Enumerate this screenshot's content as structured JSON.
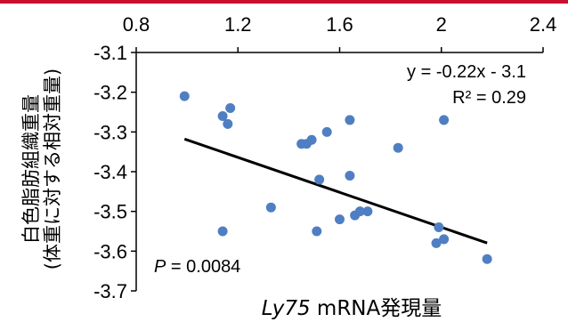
{
  "chart_data": {
    "type": "scatter",
    "x_axis": {
      "label_italic": "Ly75",
      "label_rest": " mRNA発現量",
      "range": [
        0.8,
        2.4
      ],
      "ticks": [
        "0.8",
        "1.2",
        "1.6",
        "2",
        "2.4"
      ],
      "position": "top"
    },
    "y_axis": {
      "label_line1": "白色脂肪組織重量",
      "label_line2": "(体重に対する相対重量)",
      "range": [
        -3.7,
        -3.1
      ],
      "ticks": [
        "-3.1",
        "-3.2",
        "-3.3",
        "-3.4",
        "-3.5",
        "-3.6",
        "-3.7"
      ]
    },
    "grid": false,
    "points": [
      {
        "x": 0.99,
        "y": -3.21
      },
      {
        "x": 1.14,
        "y": -3.26
      },
      {
        "x": 1.17,
        "y": -3.24
      },
      {
        "x": 1.16,
        "y": -3.28
      },
      {
        "x": 1.14,
        "y": -3.55
      },
      {
        "x": 1.33,
        "y": -3.49
      },
      {
        "x": 1.45,
        "y": -3.33
      },
      {
        "x": 1.47,
        "y": -3.33
      },
      {
        "x": 1.49,
        "y": -3.32
      },
      {
        "x": 1.55,
        "y": -3.3
      },
      {
        "x": 1.52,
        "y": -3.42
      },
      {
        "x": 1.51,
        "y": -3.55
      },
      {
        "x": 1.64,
        "y": -3.27
      },
      {
        "x": 1.64,
        "y": -3.41
      },
      {
        "x": 1.6,
        "y": -3.52
      },
      {
        "x": 1.66,
        "y": -3.51
      },
      {
        "x": 1.68,
        "y": -3.5
      },
      {
        "x": 1.71,
        "y": -3.5
      },
      {
        "x": 1.83,
        "y": -3.34
      },
      {
        "x": 1.99,
        "y": -3.54
      },
      {
        "x": 1.98,
        "y": -3.58
      },
      {
        "x": 2.01,
        "y": -3.57
      },
      {
        "x": 2.01,
        "y": -3.27
      },
      {
        "x": 2.18,
        "y": -3.62
      }
    ],
    "point_color": "#4f7fc2",
    "trendline": {
      "slope": -0.22,
      "intercept": -3.1,
      "x_start": 0.99,
      "x_end": 2.18,
      "color": "#000000"
    },
    "annotations": {
      "equation": "y = -0.22x - 3.1",
      "r_squared": "R² = 0.29",
      "p_label": "P",
      "p_value": " = 0.0084"
    }
  }
}
